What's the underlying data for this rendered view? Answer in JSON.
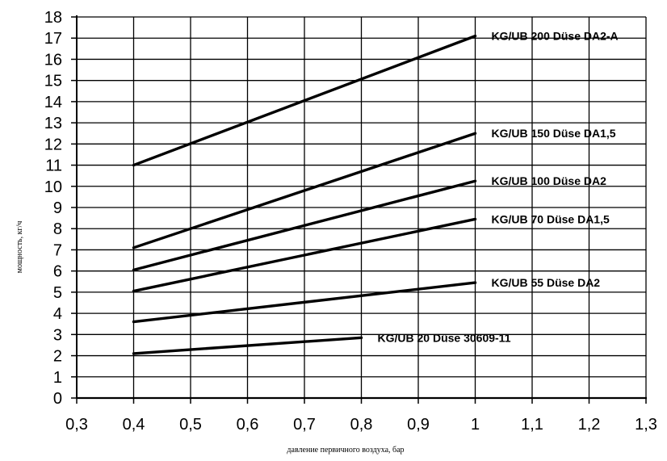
{
  "chart_data": {
    "type": "line",
    "title": "",
    "xlabel": "давление первичного воздуха, бар",
    "ylabel": "мощность, кг/ч",
    "xlim": [
      0.3,
      1.3
    ],
    "ylim": [
      0,
      18
    ],
    "x_ticks": [
      "0,3",
      "0,4",
      "0,5",
      "0,6",
      "0,7",
      "0,8",
      "0,9",
      "1",
      "1,1",
      "1,2",
      "1,3"
    ],
    "y_ticks": [
      "0",
      "1",
      "2",
      "3",
      "4",
      "5",
      "6",
      "7",
      "8",
      "9",
      "10",
      "11",
      "12",
      "13",
      "14",
      "15",
      "16",
      "17",
      "18"
    ],
    "grid": true,
    "legend": "none",
    "series": [
      {
        "name": "KG/UB 200 Düse DA2-A",
        "x": [
          0.4,
          1.0
        ],
        "y": [
          11.0,
          17.1
        ]
      },
      {
        "name": "KG/UB 150 Düse DA1,5",
        "x": [
          0.4,
          1.0
        ],
        "y": [
          7.1,
          12.5
        ]
      },
      {
        "name": "KG/UB 100 Düse DA2",
        "x": [
          0.4,
          1.0
        ],
        "y": [
          6.05,
          10.25
        ]
      },
      {
        "name": "KG/UB 70 Düse DA1,5",
        "x": [
          0.4,
          1.0
        ],
        "y": [
          5.05,
          8.45
        ]
      },
      {
        "name": "KG/UB 55 Düse DA2",
        "x": [
          0.4,
          1.0
        ],
        "y": [
          3.6,
          5.45
        ]
      },
      {
        "name": "KG/UB 20 Düse 30609-11",
        "x": [
          0.4,
          0.8
        ],
        "y": [
          2.1,
          2.85
        ]
      }
    ]
  }
}
